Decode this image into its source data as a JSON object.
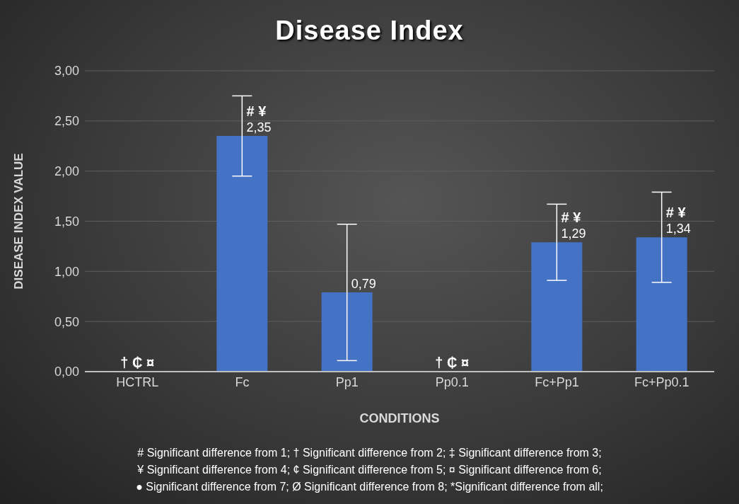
{
  "chart_data": {
    "type": "bar",
    "title": "Disease Index",
    "xlabel": "CONDITIONS",
    "ylabel": "DISEASE INDEX VALUE",
    "categories": [
      "HCTRL",
      "Fc",
      "Pp1",
      "Pp0.1",
      "Fc+Pp1",
      "Fc+Pp0.1"
    ],
    "values": [
      0,
      2.35,
      0.79,
      0,
      1.29,
      1.34
    ],
    "errors": [
      null,
      0.4,
      0.68,
      null,
      0.38,
      0.45
    ],
    "value_labels": [
      null,
      "2,35",
      "0,79",
      null,
      "1,29",
      "1,34"
    ],
    "color": "#4472c4",
    "ylim": [
      0,
      3
    ],
    "yticks": [
      {
        "value": 0,
        "label": "0,00"
      },
      {
        "value": 0.5,
        "label": "0,50"
      },
      {
        "value": 1,
        "label": "1,00"
      },
      {
        "value": 1.5,
        "label": "1,50"
      },
      {
        "value": 2,
        "label": "2,00"
      },
      {
        "value": 2.5,
        "label": "2,50"
      },
      {
        "value": 3,
        "label": "3,00"
      }
    ],
    "grid": "y",
    "annotations": [
      {
        "text": "† ₵ ¤",
        "x": "HCTRL",
        "y": 0
      },
      {
        "text": "# ¥",
        "x": "Fc",
        "y": 2.35
      },
      {
        "text": "† ₵ ¤",
        "x": "Pp0.1",
        "y": 0
      },
      {
        "text": "# ¥",
        "x": "Fc+Pp1",
        "y": 1.29
      },
      {
        "text": "# ¥",
        "x": "Fc+Pp0.1",
        "y": 1.34
      },
      "# Significant difference from 1; † Significant difference from 2; ‡ Significant difference from 3;",
      "¥ Significant difference from 4; ¢ Significant difference from 5; ¤ Significant difference from 6;",
      "● Significant difference from 7; Ø Significant difference from 8; *Significant difference from all;"
    ]
  }
}
